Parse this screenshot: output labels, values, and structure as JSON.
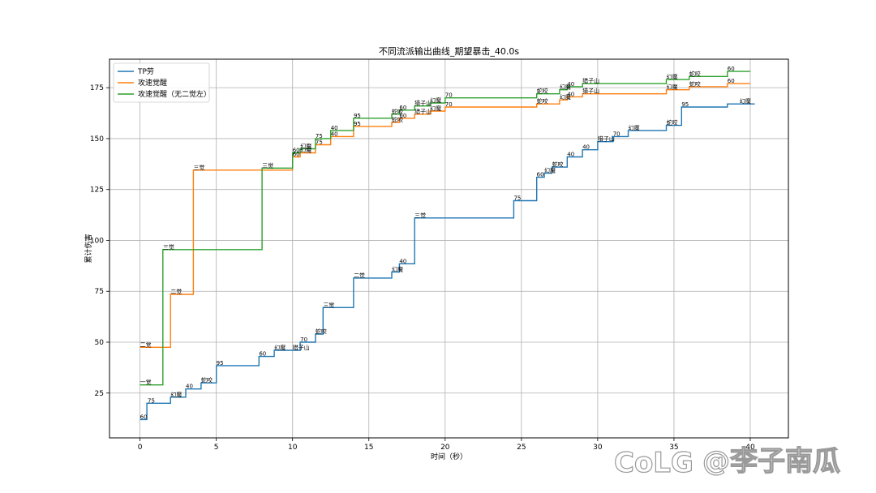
{
  "watermark": {
    "brand": "CoLG",
    "handle": "@李子南瓜"
  },
  "chart_data": {
    "type": "line",
    "title": "不同流派输出曲线_期望暴击_40.0s",
    "xlabel": "时间（秒）",
    "ylabel": "累计伤害",
    "xlim": [
      -2,
      42.5
    ],
    "ylim": [
      3,
      189
    ],
    "xticks": [
      0,
      5,
      10,
      15,
      20,
      25,
      30,
      35,
      40
    ],
    "yticks": [
      25,
      50,
      75,
      100,
      125,
      150,
      175
    ],
    "grid": true,
    "legend_position": "top-left",
    "series": [
      {
        "name": "TP劳",
        "color": "#1f77b4",
        "points": [
          [
            0,
            12
          ],
          [
            0.45,
            12
          ],
          [
            0.45,
            20
          ],
          [
            2,
            20
          ],
          [
            2,
            23
          ],
          [
            3,
            23
          ],
          [
            3,
            27
          ],
          [
            4,
            27
          ],
          [
            4,
            30
          ],
          [
            5,
            30
          ],
          [
            5,
            38.5
          ],
          [
            7.8,
            38.5
          ],
          [
            7.8,
            43
          ],
          [
            8.8,
            43
          ],
          [
            8.8,
            46
          ],
          [
            10.5,
            46
          ],
          [
            10.5,
            50
          ],
          [
            11.5,
            50
          ],
          [
            11.5,
            54
          ],
          [
            12,
            54
          ],
          [
            12,
            67
          ],
          [
            14,
            67
          ],
          [
            14,
            81.5
          ],
          [
            16.5,
            81.5
          ],
          [
            16.5,
            84.5
          ],
          [
            17,
            84.5
          ],
          [
            17,
            88.5
          ],
          [
            18,
            88.5
          ],
          [
            18,
            111
          ],
          [
            24.5,
            111
          ],
          [
            24.5,
            119.5
          ],
          [
            26,
            119.5
          ],
          [
            26,
            131
          ],
          [
            26.5,
            131
          ],
          [
            26.5,
            133
          ],
          [
            27,
            133
          ],
          [
            27,
            136
          ],
          [
            28,
            136
          ],
          [
            28,
            141
          ],
          [
            29,
            141
          ],
          [
            29,
            144.5
          ],
          [
            30,
            144.5
          ],
          [
            30,
            148.5
          ],
          [
            31,
            148.5
          ],
          [
            31,
            151
          ],
          [
            32,
            151
          ],
          [
            32,
            154
          ],
          [
            34.5,
            154
          ],
          [
            34.5,
            156.5
          ],
          [
            35.5,
            156.5
          ],
          [
            35.5,
            165.5
          ],
          [
            38.5,
            165.5
          ],
          [
            38.5,
            167
          ],
          [
            40.3,
            167
          ]
        ],
        "annotations": [
          [
            0,
            12,
            "60"
          ],
          [
            0.5,
            20,
            "75"
          ],
          [
            2,
            23,
            "幻魔"
          ],
          [
            3,
            27,
            "40"
          ],
          [
            4,
            30,
            "蛇咬"
          ],
          [
            5,
            38.5,
            "95"
          ],
          [
            7.8,
            43,
            "60"
          ],
          [
            8.8,
            46,
            "幻魔"
          ],
          [
            10,
            46,
            "猎子山"
          ],
          [
            10.5,
            50,
            "70"
          ],
          [
            11.5,
            54,
            "蛇咬"
          ],
          [
            12,
            67,
            "三觉"
          ],
          [
            14,
            81.5,
            "二觉"
          ],
          [
            16.5,
            84.5,
            "幻魔"
          ],
          [
            17,
            88.5,
            "40"
          ],
          [
            18,
            111,
            "三觉"
          ],
          [
            24.5,
            119.5,
            "75"
          ],
          [
            26,
            131,
            "60"
          ],
          [
            26.5,
            133,
            "幻魔"
          ],
          [
            27,
            136,
            "蛇咬"
          ],
          [
            28,
            141,
            "40"
          ],
          [
            29,
            144.5,
            "40"
          ],
          [
            30,
            148.5,
            "猎子山"
          ],
          [
            31,
            151,
            "70"
          ],
          [
            32,
            154,
            "幻魔"
          ],
          [
            34.5,
            156.5,
            "蛇咬"
          ],
          [
            35.5,
            165.5,
            "95"
          ],
          [
            39.3,
            167,
            "幻魔"
          ]
        ]
      },
      {
        "name": "攻速觉醒",
        "color": "#ff7f0e",
        "points": [
          [
            0,
            47.5
          ],
          [
            2,
            47.5
          ],
          [
            2,
            73.5
          ],
          [
            3.5,
            73.5
          ],
          [
            3.5,
            134.5
          ],
          [
            10,
            134.5
          ],
          [
            10,
            141
          ],
          [
            10.5,
            141
          ],
          [
            10.5,
            143
          ],
          [
            11.5,
            143
          ],
          [
            11.5,
            147
          ],
          [
            12.5,
            147
          ],
          [
            12.5,
            151
          ],
          [
            14,
            151
          ],
          [
            14,
            156
          ],
          [
            16.5,
            156
          ],
          [
            16.5,
            158
          ],
          [
            17,
            158
          ],
          [
            17,
            160
          ],
          [
            18,
            160
          ],
          [
            18,
            162
          ],
          [
            19,
            162
          ],
          [
            19,
            163.5
          ],
          [
            20,
            163.5
          ],
          [
            20,
            165.5
          ],
          [
            26,
            165.5
          ],
          [
            26,
            167
          ],
          [
            27.5,
            167
          ],
          [
            27.5,
            169
          ],
          [
            28,
            169
          ],
          [
            28,
            170.5
          ],
          [
            29,
            170.5
          ],
          [
            29,
            172
          ],
          [
            34.5,
            172
          ],
          [
            34.5,
            174
          ],
          [
            36,
            174
          ],
          [
            36,
            175.5
          ],
          [
            38.5,
            175.5
          ],
          [
            38.5,
            177
          ],
          [
            40,
            177
          ]
        ],
        "annotations": [
          [
            0,
            47.5,
            "二觉"
          ],
          [
            2,
            73.5,
            "二觉"
          ],
          [
            3.5,
            134.5,
            "三觉"
          ],
          [
            10,
            141,
            "60"
          ],
          [
            10.5,
            143,
            "幻魔"
          ],
          [
            11.5,
            147,
            "75"
          ],
          [
            12.5,
            151,
            "40"
          ],
          [
            14,
            156,
            "95"
          ],
          [
            16.5,
            158,
            "蛇咬"
          ],
          [
            17,
            160,
            "60"
          ],
          [
            18,
            162,
            "猎子山"
          ],
          [
            19,
            163.5,
            "幻魔"
          ],
          [
            20,
            165.5,
            "70"
          ],
          [
            26,
            167,
            "蛇咬"
          ],
          [
            27.5,
            169,
            "幻魔"
          ],
          [
            28,
            170.5,
            "40"
          ],
          [
            29,
            172,
            "猎子山"
          ],
          [
            34.5,
            174,
            "幻魔"
          ],
          [
            36,
            175.5,
            "蛇咬"
          ],
          [
            38.5,
            177,
            "60"
          ]
        ]
      },
      {
        "name": "攻速觉醒（无二觉左）",
        "color": "#2ca02c",
        "points": [
          [
            0,
            29
          ],
          [
            1.5,
            29
          ],
          [
            1.5,
            95.5
          ],
          [
            8,
            95.5
          ],
          [
            8,
            135.5
          ],
          [
            10,
            135.5
          ],
          [
            10,
            143
          ],
          [
            10.5,
            143
          ],
          [
            10.5,
            145
          ],
          [
            11.5,
            145
          ],
          [
            11.5,
            150
          ],
          [
            12.5,
            150
          ],
          [
            12.5,
            154
          ],
          [
            14,
            154
          ],
          [
            14,
            160
          ],
          [
            16.5,
            160
          ],
          [
            16.5,
            162
          ],
          [
            17,
            162
          ],
          [
            17,
            164
          ],
          [
            18,
            164
          ],
          [
            18,
            166
          ],
          [
            19,
            166
          ],
          [
            19,
            167.5
          ],
          [
            20,
            167.5
          ],
          [
            20,
            170
          ],
          [
            26,
            170
          ],
          [
            26,
            172
          ],
          [
            27.5,
            172
          ],
          [
            27.5,
            174
          ],
          [
            28,
            174
          ],
          [
            28,
            175.5
          ],
          [
            29,
            175.5
          ],
          [
            29,
            177
          ],
          [
            34.5,
            177
          ],
          [
            34.5,
            179
          ],
          [
            36,
            179
          ],
          [
            36,
            180.5
          ],
          [
            38.5,
            180.5
          ],
          [
            38.5,
            183
          ],
          [
            40,
            183
          ]
        ],
        "annotations": [
          [
            0,
            29,
            "一觉"
          ],
          [
            1.5,
            95.5,
            "三觉"
          ],
          [
            8,
            135.5,
            "三觉"
          ],
          [
            10,
            143,
            "60"
          ],
          [
            10.5,
            145,
            "幻魔"
          ],
          [
            11.5,
            150,
            "75"
          ],
          [
            12.5,
            154,
            "40"
          ],
          [
            14,
            160,
            "95"
          ],
          [
            16.5,
            162,
            "蛇咬"
          ],
          [
            17,
            164,
            "60"
          ],
          [
            18,
            166,
            "猎子山"
          ],
          [
            19,
            167.5,
            "幻魔"
          ],
          [
            20,
            170,
            "70"
          ],
          [
            26,
            172,
            "蛇咬"
          ],
          [
            27.5,
            174,
            "幻魔"
          ],
          [
            28,
            175.5,
            "40"
          ],
          [
            29,
            177,
            "猎子山"
          ],
          [
            34.5,
            179,
            "幻魔"
          ],
          [
            36,
            180.5,
            "蛇咬"
          ],
          [
            38.5,
            183,
            "60"
          ]
        ]
      }
    ]
  }
}
